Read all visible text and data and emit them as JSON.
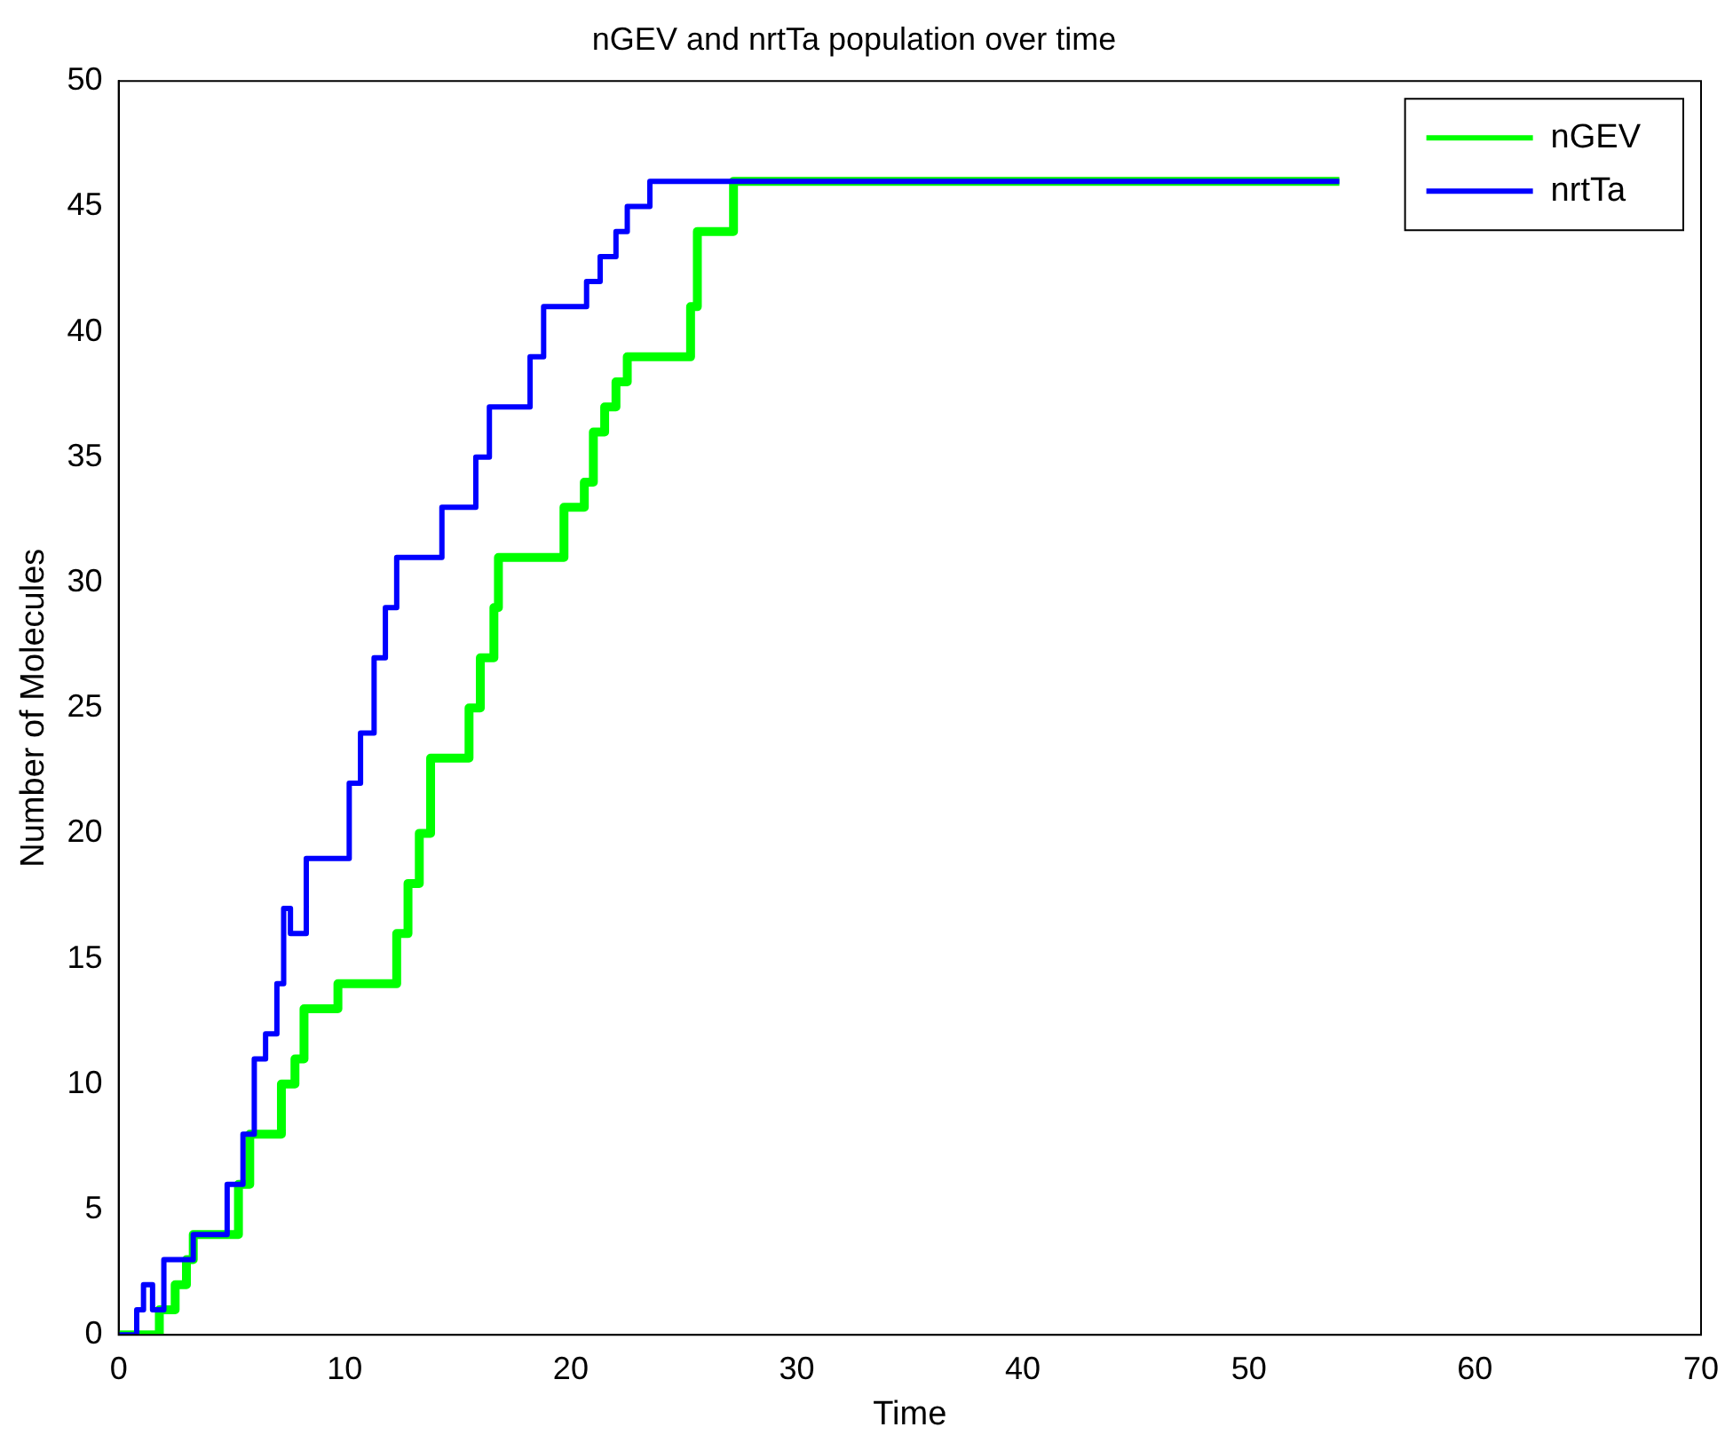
{
  "chart_data": {
    "type": "step",
    "title": "nGEV and nrtTa population over time",
    "xlabel": "Time",
    "ylabel": "Number of Molecules",
    "xlim": [
      0,
      70
    ],
    "xticks": [
      0,
      10,
      20,
      30,
      40,
      50,
      60,
      70
    ],
    "ylim": [
      0,
      50
    ],
    "yticks": [
      0,
      5,
      10,
      15,
      20,
      25,
      30,
      35,
      40,
      45,
      50
    ],
    "grid": false,
    "legend": "top right",
    "line_style": "solid",
    "marker": "none",
    "series": [
      {
        "name": "nGEV",
        "color": "#00ff00",
        "x": [
          0,
          1.8,
          2.5,
          3,
          3.3,
          5,
          5.3,
          5.8,
          7.2,
          7.8,
          8.2,
          9.7,
          12.3,
          12.8,
          13.3,
          13.8,
          15.5,
          16,
          16.6,
          16.8,
          19.7,
          20.6,
          21,
          21.5,
          22,
          22.5,
          25.3,
          25.6,
          27.2,
          54
        ],
        "values": [
          0,
          1,
          2,
          3,
          4,
          4,
          6,
          8,
          10,
          11,
          13,
          14,
          16,
          18,
          20,
          23,
          25,
          27,
          29,
          31,
          33,
          34,
          36,
          37,
          38,
          39,
          41,
          44,
          46,
          46
        ]
      },
      {
        "name": "nrtTa",
        "color": "#0000ff",
        "x": [
          0,
          0.8,
          1.1,
          1.5,
          2,
          3.3,
          4.8,
          5.5,
          6,
          6.5,
          7,
          7.3,
          7.6,
          8.3,
          10.2,
          10.7,
          11.3,
          11.8,
          12.3,
          14.3,
          15.8,
          16.4,
          18.2,
          18.8,
          20.7,
          21.3,
          22,
          22.5,
          23.5,
          54
        ],
        "values": [
          0,
          1,
          2,
          1,
          3,
          4,
          6,
          8,
          11,
          12,
          14,
          17,
          16,
          19,
          22,
          24,
          27,
          29,
          31,
          33,
          35,
          37,
          39,
          41,
          42,
          43,
          44,
          45,
          46,
          46
        ]
      }
    ]
  }
}
